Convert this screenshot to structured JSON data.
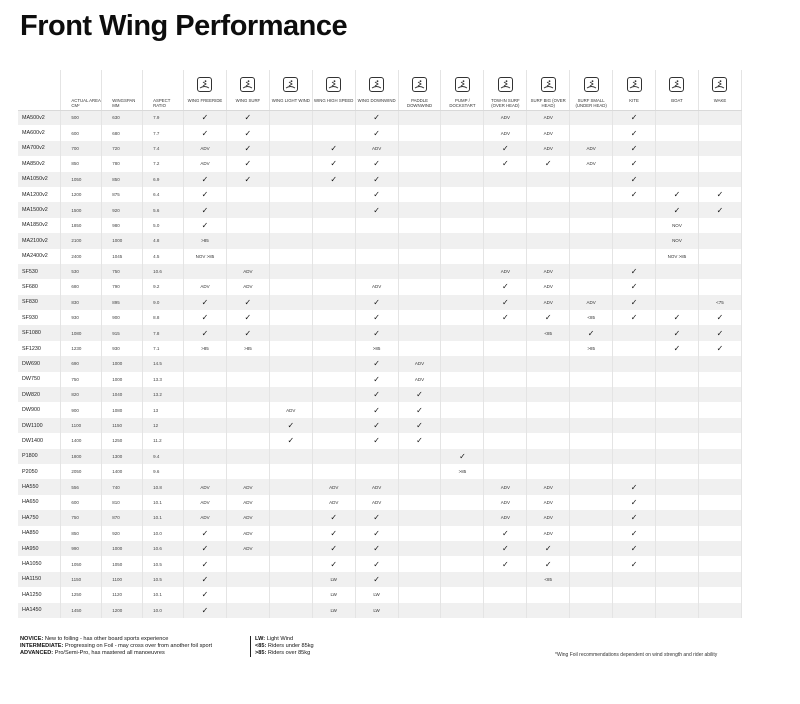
{
  "title": "Front Wing Performance",
  "columns": {
    "area": "Actual area cm²",
    "wingspan": "Wingspan mm",
    "aspect": "Aspect ratio",
    "disciplines": [
      {
        "label": "Wing Freeride",
        "icon": "wing-freeride-icon"
      },
      {
        "label": "Wing Surf",
        "icon": "wing-surf-icon"
      },
      {
        "label": "Wing Light Wind",
        "icon": "wing-light-wind-icon"
      },
      {
        "label": "Wing High Speed",
        "icon": "wing-high-speed-icon"
      },
      {
        "label": "Wing Downwind",
        "icon": "wing-downwind-icon"
      },
      {
        "label": "Paddle Downwind",
        "icon": "paddle-downwind-icon"
      },
      {
        "label": "Pump / Dockstart",
        "icon": "pump-dockstart-icon"
      },
      {
        "label": "Tow-in Surf (over head)",
        "icon": "tow-in-surf-icon"
      },
      {
        "label": "Surf Big (over head)",
        "icon": "surf-big-icon"
      },
      {
        "label": "Surf Small (under head)",
        "icon": "surf-small-icon"
      },
      {
        "label": "Kite",
        "icon": "kite-icon"
      },
      {
        "label": "Boat",
        "icon": "boat-icon"
      },
      {
        "label": "Wake",
        "icon": "wake-icon"
      }
    ]
  },
  "rows": [
    {
      "name": "MA500v2",
      "area": "500",
      "span": "630",
      "ar": "7.9",
      "c": [
        "✓",
        "✓",
        "",
        "",
        "✓",
        "",
        "",
        "ADV",
        "ADV",
        "",
        "✓",
        "",
        ""
      ]
    },
    {
      "name": "MA600v2",
      "area": "600",
      "span": "680",
      "ar": "7.7",
      "c": [
        "✓",
        "✓",
        "",
        "",
        "✓",
        "",
        "",
        "ADV",
        "ADV",
        "",
        "✓",
        "",
        ""
      ]
    },
    {
      "name": "MA700v2",
      "area": "700",
      "span": "720",
      "ar": "7.4",
      "c": [
        "ADV",
        "✓",
        "",
        "✓",
        "ADV",
        "",
        "",
        "✓",
        "ADV",
        "ADV",
        "✓",
        "",
        ""
      ]
    },
    {
      "name": "MA850v2",
      "area": "850",
      "span": "780",
      "ar": "7.2",
      "c": [
        "ADV",
        "✓",
        "",
        "✓",
        "✓",
        "",
        "",
        "✓",
        "✓",
        "ADV",
        "✓",
        "",
        ""
      ]
    },
    {
      "name": "MA1050v2",
      "area": "1050",
      "span": "850",
      "ar": "6.9",
      "c": [
        "✓",
        "✓",
        "",
        "✓",
        "✓",
        "",
        "",
        "",
        "",
        "",
        "✓",
        "",
        ""
      ]
    },
    {
      "name": "MA1200v2",
      "area": "1200",
      "span": "875",
      "ar": "6.4",
      "c": [
        "✓",
        "",
        "",
        "",
        "✓",
        "",
        "",
        "",
        "",
        "",
        "✓",
        "✓",
        "✓"
      ]
    },
    {
      "name": "MA1500v2",
      "area": "1500",
      "span": "920",
      "ar": "5.6",
      "c": [
        "✓",
        "",
        "",
        "",
        "✓",
        "",
        "",
        "",
        "",
        "",
        "",
        "✓",
        "✓"
      ]
    },
    {
      "name": "MA1850v2",
      "area": "1850",
      "span": "980",
      "ar": "5.0",
      "c": [
        "✓",
        "",
        "",
        "",
        "",
        "",
        "",
        "",
        "",
        "",
        "",
        "NOV",
        ""
      ]
    },
    {
      "name": "MA2100v2",
      "area": "2100",
      "span": "1000",
      "ar": "4.8",
      "c": [
        ">85",
        "",
        "",
        "",
        "",
        "",
        "",
        "",
        "",
        "",
        "",
        "NOV",
        ""
      ]
    },
    {
      "name": "MA2400v2",
      "area": "2400",
      "span": "1045",
      "ar": "4.5",
      "c": [
        "NOV >85",
        "",
        "",
        "",
        "",
        "",
        "",
        "",
        "",
        "",
        "",
        "NOV >85",
        ""
      ]
    },
    {
      "name": "SF530",
      "area": "530",
      "span": "750",
      "ar": "10.6",
      "c": [
        "",
        "ADV",
        "",
        "",
        "",
        "",
        "",
        "ADV",
        "ADV",
        "",
        "✓",
        "",
        ""
      ]
    },
    {
      "name": "SF680",
      "area": "680",
      "span": "790",
      "ar": "9.2",
      "c": [
        "ADV",
        "ADV",
        "",
        "",
        "ADV",
        "",
        "",
        "✓",
        "ADV",
        "",
        "✓",
        "",
        ""
      ]
    },
    {
      "name": "SF830",
      "area": "830",
      "span": "895",
      "ar": "9.0",
      "c": [
        "✓",
        "✓",
        "",
        "",
        "✓",
        "",
        "",
        "✓",
        "ADV",
        "ADV",
        "✓",
        "",
        "<75"
      ]
    },
    {
      "name": "SF930",
      "area": "930",
      "span": "900",
      "ar": "8.8",
      "c": [
        "✓",
        "✓",
        "",
        "",
        "✓",
        "",
        "",
        "✓",
        "✓",
        "<85",
        "✓",
        "✓",
        "✓"
      ]
    },
    {
      "name": "SF1080",
      "area": "1080",
      "span": "915",
      "ar": "7.8",
      "c": [
        "✓",
        "✓",
        "",
        "",
        "✓",
        "",
        "",
        "",
        "<85",
        "✓",
        "",
        "✓",
        "✓"
      ]
    },
    {
      "name": "SF1230",
      "area": "1230",
      "span": "930",
      "ar": "7.1",
      "c": [
        ">85",
        ">85",
        "",
        "",
        ">85",
        "",
        "",
        "",
        "",
        ">85",
        "",
        "✓",
        "✓"
      ]
    },
    {
      "name": "DW690",
      "area": "690",
      "span": "1000",
      "ar": "14.5",
      "c": [
        "",
        "",
        "",
        "",
        "✓",
        "ADV",
        "",
        "",
        "",
        "",
        "",
        "",
        ""
      ]
    },
    {
      "name": "DW750",
      "area": "750",
      "span": "1000",
      "ar": "13.3",
      "c": [
        "",
        "",
        "",
        "",
        "✓",
        "ADV",
        "",
        "",
        "",
        "",
        "",
        "",
        ""
      ]
    },
    {
      "name": "DW820",
      "area": "820",
      "span": "1040",
      "ar": "13.2",
      "c": [
        "",
        "",
        "",
        "",
        "✓",
        "✓",
        "",
        "",
        "",
        "",
        "",
        "",
        ""
      ]
    },
    {
      "name": "DW900",
      "area": "900",
      "span": "1080",
      "ar": "13",
      "c": [
        "",
        "",
        "ADV",
        "",
        "✓",
        "✓",
        "",
        "",
        "",
        "",
        "",
        "",
        ""
      ]
    },
    {
      "name": "DW1100",
      "area": "1100",
      "span": "1150",
      "ar": "12",
      "c": [
        "",
        "",
        "✓",
        "",
        "✓",
        "✓",
        "",
        "",
        "",
        "",
        "",
        "",
        ""
      ]
    },
    {
      "name": "DW1400",
      "area": "1400",
      "span": "1250",
      "ar": "11.2",
      "c": [
        "",
        "",
        "✓",
        "",
        "✓",
        "✓",
        "",
        "",
        "",
        "",
        "",
        "",
        ""
      ]
    },
    {
      "name": "P1800",
      "area": "1800",
      "span": "1300",
      "ar": "9.4",
      "c": [
        "",
        "",
        "",
        "",
        "",
        "",
        "✓",
        "",
        "",
        "",
        "",
        "",
        ""
      ]
    },
    {
      "name": "P2050",
      "area": "2050",
      "span": "1400",
      "ar": "9.6",
      "c": [
        "",
        "",
        "",
        "",
        "",
        "",
        ">85",
        "",
        "",
        "",
        "",
        "",
        ""
      ]
    },
    {
      "name": "HA550",
      "area": "556",
      "span": "740",
      "ar": "10.8",
      "c": [
        "ADV",
        "ADV",
        "",
        "ADV",
        "ADV",
        "",
        "",
        "ADV",
        "ADV",
        "",
        "✓",
        "",
        ""
      ]
    },
    {
      "name": "HA650",
      "area": "600",
      "span": "810",
      "ar": "10.1",
      "c": [
        "ADV",
        "ADV",
        "",
        "ADV",
        "ADV",
        "",
        "",
        "ADV",
        "ADV",
        "",
        "✓",
        "",
        ""
      ]
    },
    {
      "name": "HA750",
      "area": "750",
      "span": "870",
      "ar": "10.1",
      "c": [
        "ADV",
        "ADV",
        "",
        "✓",
        "✓",
        "",
        "",
        "ADV",
        "ADV",
        "",
        "✓",
        "",
        ""
      ]
    },
    {
      "name": "HA850",
      "area": "850",
      "span": "920",
      "ar": "10.0",
      "c": [
        "✓",
        "ADV",
        "",
        "✓",
        "✓",
        "",
        "",
        "✓",
        "ADV",
        "",
        "✓",
        "",
        ""
      ]
    },
    {
      "name": "HA950",
      "area": "990",
      "span": "1000",
      "ar": "10.6",
      "c": [
        "✓",
        "ADV",
        "",
        "✓",
        "✓",
        "",
        "",
        "✓",
        "✓",
        "",
        "✓",
        "",
        ""
      ]
    },
    {
      "name": "HA1050",
      "area": "1050",
      "span": "1050",
      "ar": "10.5",
      "c": [
        "✓",
        "",
        "",
        "✓",
        "✓",
        "",
        "",
        "✓",
        "✓",
        "",
        "✓",
        "",
        ""
      ]
    },
    {
      "name": "HA1150",
      "area": "1150",
      "span": "1100",
      "ar": "10.5",
      "c": [
        "✓",
        "",
        "",
        "LW",
        "✓",
        "",
        "",
        "",
        "<85",
        "",
        "",
        "",
        ""
      ]
    },
    {
      "name": "HA1250",
      "area": "1250",
      "span": "1120",
      "ar": "10.1",
      "c": [
        "✓",
        "",
        "",
        "LW",
        "LW",
        "",
        "",
        "",
        "",
        "",
        "",
        "",
        ""
      ]
    },
    {
      "name": "HA1450",
      "area": "1450",
      "span": "1200",
      "ar": "10.0",
      "c": [
        "✓",
        "",
        "",
        "LW",
        "LW",
        "",
        "",
        "",
        "",
        "",
        "",
        "",
        ""
      ]
    }
  ],
  "legend": {
    "novice_key": "NOVICE:",
    "novice_text": "New to foiling - has other board sports experience",
    "intermediate_key": "INTERMEDIATE:",
    "intermediate_text": "Progressing on Foil - may cross over from another foil sport",
    "advanced_key": "ADVANCED:",
    "advanced_text": "Pro/Semi-Pro, has mastered all manoeuvres",
    "lw_key": "LW:",
    "lw_text": "Light Wind",
    "lt85_key": "<85:",
    "lt85_text": "Riders under 85kg",
    "gt85_key": ">85:",
    "gt85_text": "Riders over 85kg"
  },
  "note": "*Wing Foil recommendations dependent on wind strength and rider ability"
}
